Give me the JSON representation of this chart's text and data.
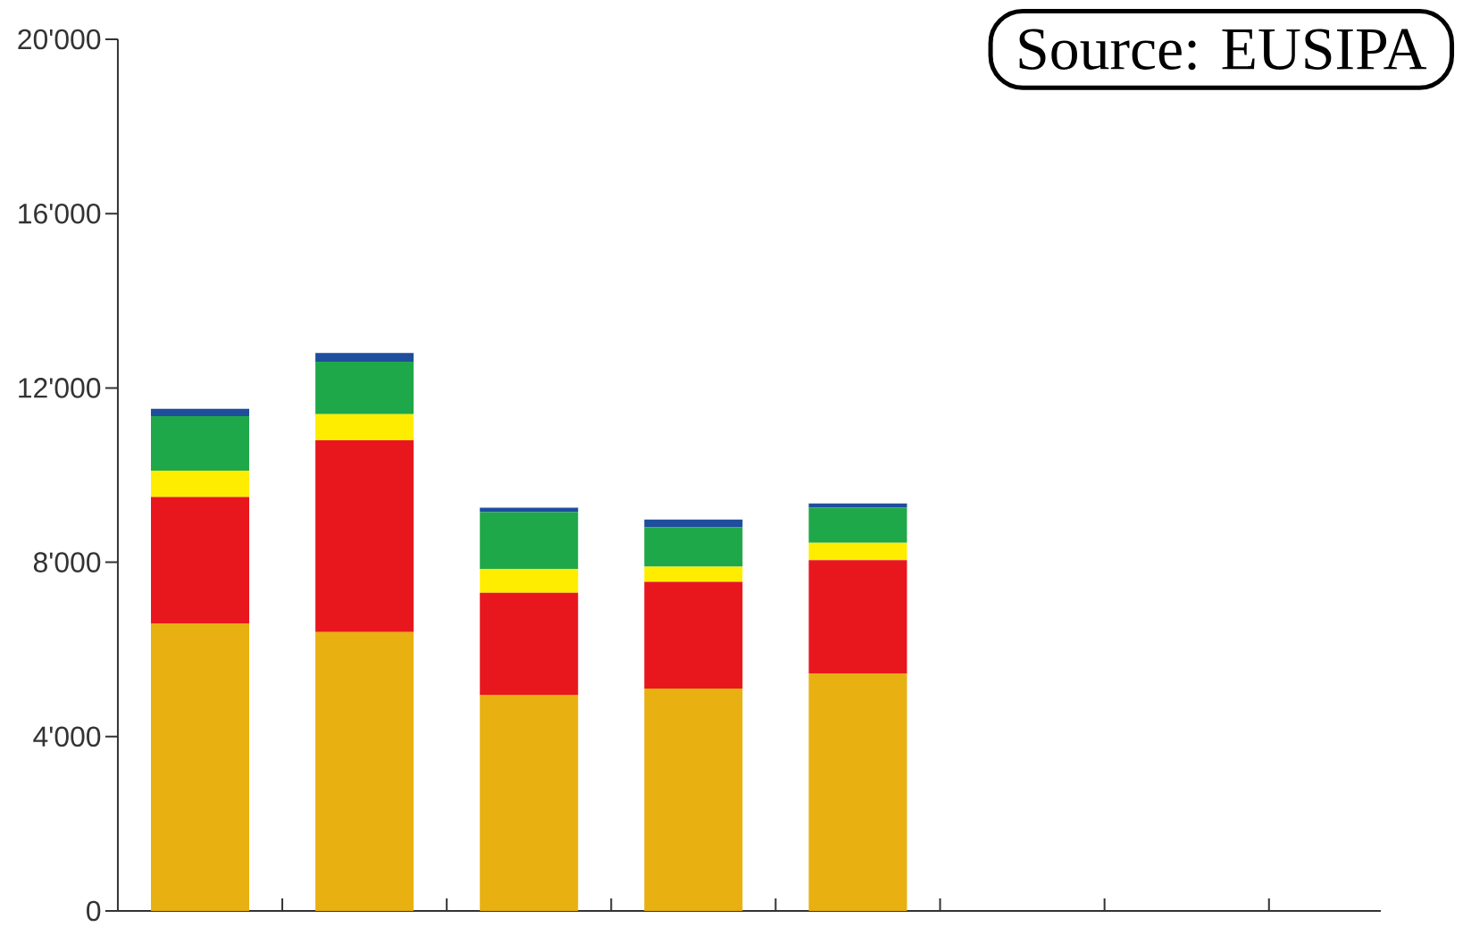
{
  "chart_data": {
    "type": "bar",
    "stacked": true,
    "categories": [
      null,
      null,
      null,
      null,
      null
    ],
    "series": [
      {
        "color": "#e8b010",
        "values": [
          6600,
          6400,
          4950,
          5100,
          5450
        ]
      },
      {
        "color": "#e8171e",
        "values": [
          2900,
          4400,
          2350,
          2450,
          2600
        ]
      },
      {
        "color": "#ffed00",
        "values": [
          600,
          600,
          550,
          350,
          400
        ]
      },
      {
        "color": "#1fa84a",
        "values": [
          1250,
          1200,
          1300,
          900,
          800
        ]
      },
      {
        "color": "#1e4e9c",
        "values": [
          170,
          200,
          100,
          180,
          100
        ]
      }
    ],
    "ylim": [
      0,
      20000
    ],
    "yticks": [
      {
        "value": 0,
        "label": "0"
      },
      {
        "value": 4000,
        "label": "4'000"
      },
      {
        "value": 8000,
        "label": "8'000"
      },
      {
        "value": 12000,
        "label": "12'000"
      },
      {
        "value": 16000,
        "label": "16'000"
      },
      {
        "value": 20000,
        "label": "20'000"
      }
    ],
    "annotations": [
      "Source: EUSIPA"
    ]
  }
}
